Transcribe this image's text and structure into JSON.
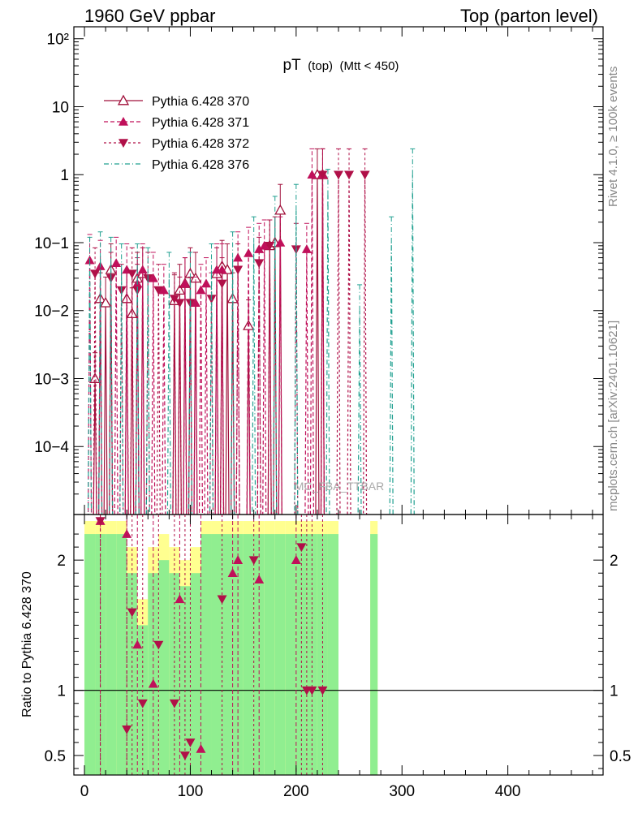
{
  "header": {
    "left": "1960 GeV ppbar",
    "right": "Top (parton level)"
  },
  "side_labels": {
    "rivet": "Rivet 4.1.0, ≥ 100k events",
    "mcplots": "mcplots.cern.ch [arXiv:2401.10621]"
  },
  "colors": {
    "s370": "#a0103a",
    "s371": "#c0105a",
    "s372": "#b01048",
    "s376": "#20a090",
    "band_green": "#90ee90",
    "band_yellow": "#ffff90"
  },
  "chart_data": [
    {
      "type": "line",
      "title_main": "pT",
      "title_sub": "(top)",
      "title_cut": "(Mtt < 450)",
      "xlabel": "",
      "ylabel": "",
      "yscale": "log",
      "xlim": [
        -10,
        490
      ],
      "ylim": [
        1e-05,
        150
      ],
      "y_tick_labels": [
        "10−4",
        "10−3",
        "10−2",
        "10−1",
        "1",
        "10",
        "10²"
      ],
      "watermark": "MC_FBA_TTBAR",
      "legend_position": "top-left",
      "series": [
        {
          "name": "Pythia 6.428 370",
          "marker": "triangle-open",
          "x": [
            10,
            15,
            20,
            25,
            40,
            45,
            50,
            55,
            85,
            90,
            95,
            100,
            105,
            125,
            130,
            135,
            140,
            155,
            175,
            180,
            185,
            220,
            225
          ],
          "y": [
            0.001,
            0.015,
            0.013,
            0.04,
            0.015,
            0.009,
            0.03,
            0.035,
            0.014,
            0.02,
            0.025,
            0.035,
            0.03,
            0.035,
            0.045,
            0.04,
            0.015,
            0.006,
            0.09,
            0.1,
            0.3,
            1.0,
            1.0
          ]
        },
        {
          "name": "Pythia 6.428 371",
          "marker": "triangle-up",
          "x": [
            5,
            15,
            30,
            40,
            50,
            55,
            65,
            75,
            95,
            105,
            110,
            115,
            125,
            130,
            145,
            155,
            165,
            170,
            185,
            210,
            215,
            225
          ],
          "y": [
            0.055,
            0.045,
            0.05,
            0.04,
            0.025,
            0.04,
            0.03,
            0.02,
            0.025,
            0.013,
            0.02,
            0.025,
            0.04,
            0.04,
            0.06,
            0.07,
            0.08,
            0.09,
            0.1,
            0.08,
            1.0,
            1.0
          ]
        },
        {
          "name": "Pythia 6.428 372",
          "marker": "triangle-down",
          "x": [
            10,
            25,
            35,
            45,
            50,
            60,
            70,
            85,
            90,
            100,
            120,
            130,
            145,
            165,
            175,
            200,
            225,
            240,
            250,
            265
          ],
          "y": [
            0.035,
            0.03,
            0.02,
            0.035,
            0.02,
            0.03,
            0.02,
            0.015,
            0.013,
            0.013,
            0.015,
            0.025,
            0.04,
            0.05,
            0.09,
            0.08,
            1.0,
            1.0,
            1.0,
            1.0
          ]
        },
        {
          "name": "Pythia 6.428 376",
          "marker": "none",
          "x": [
            5,
            15,
            25,
            35,
            50,
            60,
            80,
            100,
            120,
            140,
            160,
            180,
            200,
            230,
            260,
            290,
            310
          ],
          "y": [
            0.05,
            0.06,
            0.05,
            0.04,
            0.04,
            0.035,
            0.03,
            0.03,
            0.04,
            0.06,
            0.1,
            0.2,
            0.3,
            0.5,
            0.01,
            0.1,
            1.0
          ]
        }
      ]
    },
    {
      "type": "line",
      "ylabel": "Ratio to Pythia 6.428 370",
      "xlabel": "",
      "xlim": [
        -10,
        490
      ],
      "ylim": [
        0.35,
        2.35
      ],
      "y_tick_labels": [
        "0.5",
        "1",
        "2"
      ],
      "x_tick_labels": [
        "0",
        "100",
        "200",
        "300",
        "400"
      ],
      "x_ticks": [
        0,
        100,
        200,
        300,
        400
      ],
      "band_bins": [
        [
          0,
          10
        ],
        [
          10,
          20
        ],
        [
          20,
          30
        ],
        [
          30,
          40
        ],
        [
          40,
          50
        ],
        [
          50,
          60
        ],
        [
          60,
          70
        ],
        [
          70,
          80
        ],
        [
          80,
          90
        ],
        [
          90,
          100
        ],
        [
          100,
          110
        ],
        [
          110,
          120
        ],
        [
          120,
          130
        ],
        [
          130,
          140
        ],
        [
          140,
          150
        ],
        [
          150,
          160
        ],
        [
          160,
          170
        ],
        [
          170,
          180
        ],
        [
          180,
          190
        ],
        [
          190,
          200
        ],
        [
          200,
          210
        ],
        [
          210,
          220
        ],
        [
          220,
          230
        ],
        [
          230,
          240
        ],
        [
          270,
          277
        ]
      ],
      "band_green_hi": [
        2.2,
        2.2,
        2.2,
        2.2,
        1.9,
        1.5,
        1.9,
        2.0,
        1.9,
        1.8,
        1.9,
        2.2,
        2.2,
        2.2,
        2.2,
        2.2,
        2.2,
        2.2,
        2.2,
        2.2,
        2.2,
        2.2,
        2.2,
        2.2,
        2.2
      ],
      "band_yellow_hi": [
        2.3,
        2.3,
        2.3,
        2.3,
        2.1,
        1.7,
        2.1,
        2.2,
        2.1,
        2.0,
        2.1,
        2.3,
        2.3,
        2.3,
        2.3,
        2.3,
        2.3,
        2.3,
        2.3,
        2.3,
        2.3,
        2.3,
        2.3,
        2.3,
        2.3
      ],
      "series": [
        {
          "name": "Pythia 6.428 371 / 370",
          "marker": "triangle-up",
          "x": [
            15,
            40,
            50,
            65,
            90,
            110,
            140,
            145,
            165,
            200
          ],
          "y": [
            2.3,
            2.2,
            1.35,
            1.05,
            1.7,
            0.55,
            1.9,
            2.0,
            1.85,
            2.0
          ]
        },
        {
          "name": "Pythia 6.428 372 / 370",
          "marker": "triangle-down",
          "x": [
            15,
            40,
            45,
            55,
            70,
            85,
            95,
            100,
            130,
            160,
            205,
            210,
            215,
            225
          ],
          "y": [
            2.3,
            0.7,
            1.6,
            0.9,
            1.35,
            0.9,
            0.5,
            0.6,
            1.7,
            2.0,
            2.1,
            1.0,
            1.0,
            1.0
          ]
        }
      ]
    }
  ]
}
